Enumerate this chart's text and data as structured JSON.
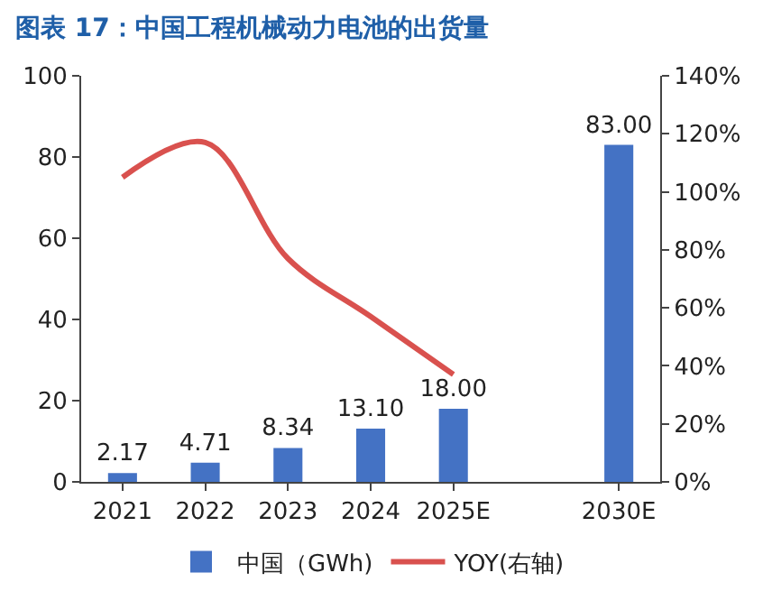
{
  "chart_data": {
    "type": "bar",
    "title": "图表 17：中国工程机械动力电池的出货量",
    "categories": [
      "2021",
      "2022",
      "2023",
      "2024",
      "2025E",
      null,
      "2030E"
    ],
    "series": [
      {
        "name": "中国（GWh)",
        "color": "#4472c4",
        "values": [
          2.17,
          4.71,
          8.34,
          13.1,
          18,
          null,
          83
        ],
        "value_labels": [
          "2.17",
          "4.71",
          "8.34",
          "13.10",
          "18.00",
          null,
          "83.00"
        ]
      },
      {
        "name": "YOY(右轴)",
        "type": "line",
        "axis": "y2",
        "color": "#d9514e",
        "values": [
          105,
          117,
          77,
          57,
          37,
          null,
          null
        ]
      }
    ],
    "ylim": [
      0,
      100
    ],
    "yticks": [
      0,
      20,
      40,
      60,
      80,
      100
    ],
    "y2lim": [
      0,
      140
    ],
    "y2ticks": [
      {
        "value": 0,
        "label": "0%"
      },
      {
        "value": 20,
        "label": "20%"
      },
      {
        "value": 40,
        "label": "40%"
      },
      {
        "value": 60,
        "label": "60%"
      },
      {
        "value": 80,
        "label": "80%"
      },
      {
        "value": 100,
        "label": "100%"
      },
      {
        "value": 120,
        "label": "120%"
      },
      {
        "value": 140,
        "label": "140%"
      }
    ],
    "grid": false,
    "legend": "bottom"
  }
}
